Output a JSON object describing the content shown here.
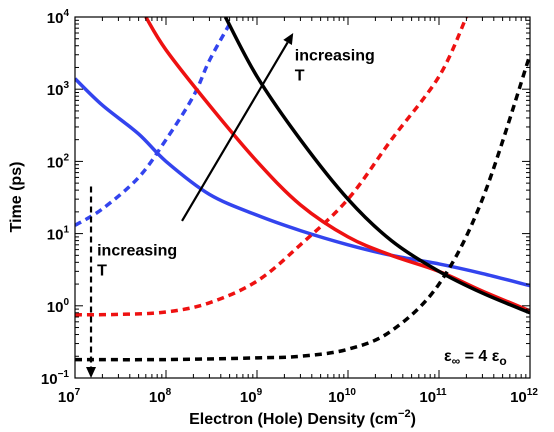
{
  "chart_data": {
    "type": "line",
    "xlabel": "Electron (Hole) Density (cm",
    "xlabel_exp": "−2",
    "xlabel_close": ")",
    "ylabel": "Time (ps)",
    "x_scale": "log",
    "y_scale": "log",
    "xlim": [
      10000000.0,
      1000000000000.0
    ],
    "ylim": [
      0.1,
      10000
    ],
    "grid": false,
    "x_ticks": [
      {
        "base": "10",
        "exp": "7",
        "value": 10000000.0
      },
      {
        "base": "10",
        "exp": "8",
        "value": 100000000.0
      },
      {
        "base": "10",
        "exp": "9",
        "value": 1000000000.0
      },
      {
        "base": "10",
        "exp": "10",
        "value": 10000000000.0
      },
      {
        "base": "10",
        "exp": "11",
        "value": 100000000000.0
      },
      {
        "base": "10",
        "exp": "12",
        "value": 1000000000000.0
      }
    ],
    "y_ticks": [
      {
        "base": "10",
        "exp": "−1",
        "value": 0.1
      },
      {
        "base": "10",
        "exp": "0",
        "value": 1
      },
      {
        "base": "10",
        "exp": "1",
        "value": 10
      },
      {
        "base": "10",
        "exp": "2",
        "value": 100
      },
      {
        "base": "10",
        "exp": "3",
        "value": 1000
      },
      {
        "base": "10",
        "exp": "4",
        "value": 10000
      }
    ],
    "series": [
      {
        "color": "#3344ee",
        "style": "solid",
        "x": [
          10000000.0,
          20000000.0,
          50000000.0,
          100000000.0,
          300000000.0,
          1000000000.0,
          3000000000.0,
          10000000000.0,
          30000000000.0,
          100000000000.0,
          300000000000.0,
          1000000000000.0
        ],
        "y": [
          1400,
          600,
          240,
          100,
          35,
          18,
          11,
          7,
          5,
          3.8,
          2.8,
          1.9
        ]
      },
      {
        "color": "#3344ee",
        "style": "dashed",
        "x": [
          10000000.0,
          20000000.0,
          50000000.0,
          100000000.0,
          200000000.0,
          300000000.0,
          500000000.0
        ],
        "y": [
          13,
          22,
          60,
          200,
          800,
          2500,
          8000
        ]
      },
      {
        "color": "#ee1111",
        "style": "solid",
        "x": [
          60000000.0,
          100000000.0,
          300000000.0,
          1000000000.0,
          3000000000.0,
          10000000000.0,
          30000000000.0,
          100000000000.0,
          300000000000.0,
          1000000000000.0
        ],
        "y": [
          10000,
          3500,
          600,
          100,
          25,
          9,
          5,
          3,
          1.6,
          0.85
        ]
      },
      {
        "color": "#ee1111",
        "style": "dashed",
        "x": [
          10000000.0,
          30000000.0,
          100000000.0,
          300000000.0,
          1000000000.0,
          3000000000.0,
          10000000000.0,
          30000000000.0,
          100000000000.0,
          200000000000.0
        ],
        "y": [
          0.75,
          0.76,
          0.82,
          1.1,
          2.2,
          7,
          30,
          200,
          1500,
          10000
        ]
      },
      {
        "color": "#000000",
        "style": "solid",
        "x": [
          450000000.0,
          1000000000.0,
          3000000000.0,
          10000000000.0,
          30000000000.0,
          100000000000.0,
          300000000000.0,
          1000000000000.0
        ],
        "y": [
          10000,
          1500,
          200,
          30,
          8,
          3,
          1.5,
          0.8
        ]
      },
      {
        "color": "#000000",
        "style": "dashed",
        "x": [
          10000000.0,
          100000000.0,
          1000000000.0,
          3000000000.0,
          10000000000.0,
          30000000000.0,
          100000000000.0,
          300000000000.0,
          1000000000000.0
        ],
        "y": [
          0.18,
          0.18,
          0.19,
          0.2,
          0.25,
          0.45,
          2,
          30,
          3000
        ]
      }
    ],
    "annotations": [
      {
        "id": "upper",
        "line1": "increasing",
        "line2": "T",
        "arrow_style": "solid",
        "arrow_from": [
          150000000.0,
          15
        ],
        "arrow_to": [
          2500000000.0,
          6000
        ],
        "text_at": [
          2600000000.0,
          2500
        ]
      },
      {
        "id": "lower",
        "line1": "increasing",
        "line2": "T",
        "arrow_style": "dashed",
        "arrow_from": [
          15000000.0,
          45
        ],
        "arrow_to": [
          15000000.0,
          0.1
        ],
        "text_at": [
          17500000.0,
          5
        ]
      }
    ],
    "legend_note": {
      "base": "ε",
      "sub": "∞",
      "mid": " = 4 ε",
      "sub2": "o"
    }
  }
}
